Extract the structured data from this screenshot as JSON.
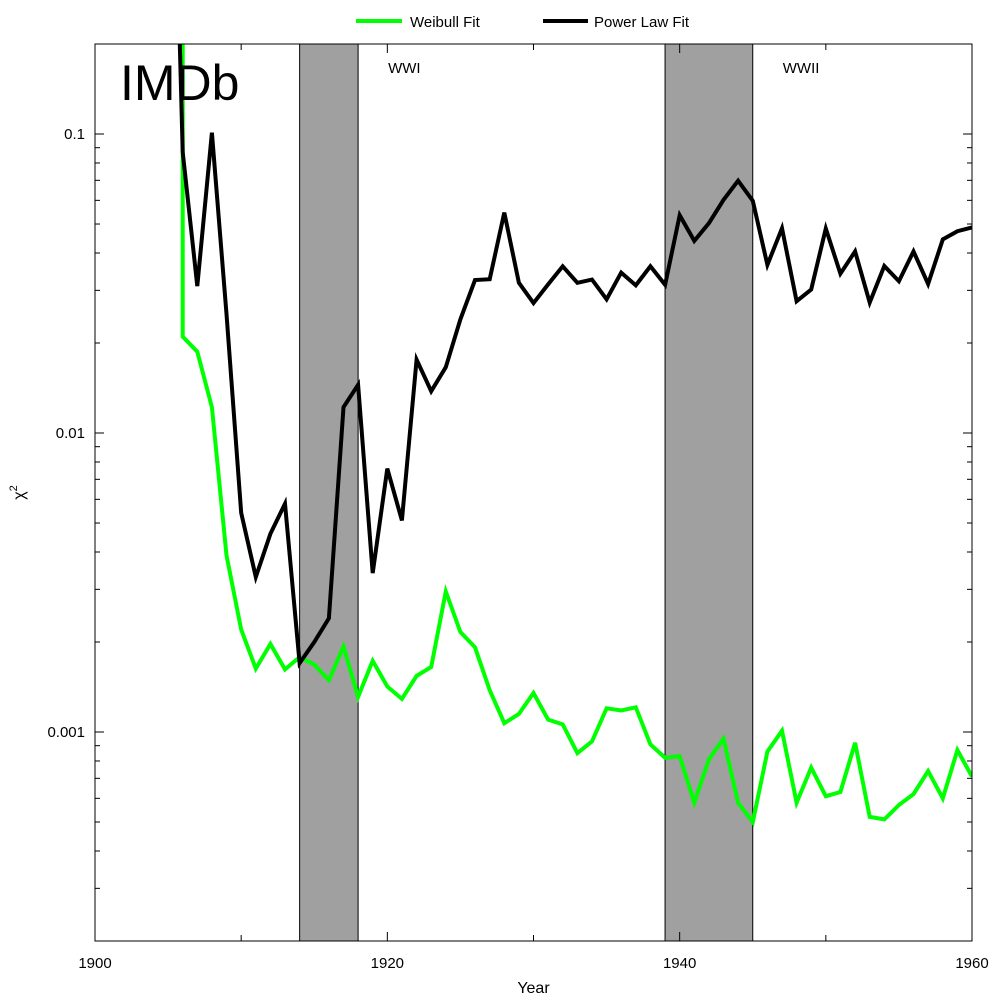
{
  "chart_data": {
    "type": "line",
    "panel_label": "IMDb",
    "xlabel": "Year",
    "ylabel": "χ",
    "ylabel_sup": "2",
    "xlim": [
      1900,
      1960
    ],
    "ylim": [
      0.0002,
      0.2
    ],
    "yscale": "log",
    "x_ticks": [
      1900,
      1920,
      1940,
      1960
    ],
    "y_ticks": [
      0.001,
      0.01,
      0.1
    ],
    "y_tick_labels": [
      "0.001",
      "0.01",
      "0.1"
    ],
    "x_tick_labels": [
      "1900",
      "1920",
      "1940",
      "1960"
    ],
    "grid": false,
    "legend_position": "top-center-outside",
    "shaded_regions": [
      {
        "label": "WWI",
        "start": 1914,
        "end": 1918,
        "color": "#a0a0a0"
      },
      {
        "label": "WWII",
        "start": 1939,
        "end": 1945,
        "color": "#a0a0a0"
      }
    ],
    "series": [
      {
        "name": "Weibull Fit",
        "color": "#00ff00",
        "x": [
          1906,
          1906,
          1907,
          1908,
          1909,
          1910,
          1911,
          1912,
          1913,
          1914,
          1915,
          1916,
          1917,
          1918,
          1919,
          1920,
          1921,
          1922,
          1923,
          1924,
          1925,
          1926,
          1927,
          1928,
          1929,
          1930,
          1931,
          1932,
          1933,
          1934,
          1935,
          1936,
          1937,
          1938,
          1939,
          1940,
          1941,
          1942,
          1943,
          1944,
          1945,
          1946,
          1947,
          1948,
          1949,
          1950,
          1951,
          1952,
          1953,
          1954,
          1955,
          1956,
          1957,
          1958,
          1959,
          1960
        ],
        "y": [
          0.2,
          0.021,
          0.0187,
          0.0122,
          0.0039,
          0.0022,
          0.00163,
          0.00197,
          0.00162,
          0.00178,
          0.00168,
          0.00149,
          0.00193,
          0.00131,
          0.00173,
          0.00142,
          0.00129,
          0.00154,
          0.00165,
          0.00295,
          0.00216,
          0.00192,
          0.00138,
          0.00107,
          0.00115,
          0.00135,
          0.0011,
          0.00106,
          0.00085,
          0.00093,
          0.0012,
          0.00118,
          0.00121,
          0.00091,
          0.00082,
          0.00083,
          0.00058,
          0.00081,
          0.00095,
          0.00058,
          0.0005,
          0.00086,
          0.00101,
          0.00058,
          0.00076,
          0.00061,
          0.00063,
          0.00092,
          0.00052,
          0.00051,
          0.00057,
          0.00062,
          0.00074,
          0.0006,
          0.00087,
          0.00071
        ]
      },
      {
        "name": "Power Law Fit",
        "color": "#000000",
        "x": [
          1905.8,
          1906,
          1907,
          1908,
          1909,
          1910,
          1911,
          1912,
          1913,
          1914,
          1915,
          1916,
          1917,
          1918,
          1919,
          1920,
          1921,
          1922,
          1923,
          1924,
          1925,
          1926,
          1927,
          1928,
          1929,
          1930,
          1931,
          1932,
          1933,
          1934,
          1935,
          1936,
          1937,
          1938,
          1939,
          1940,
          1941,
          1942,
          1943,
          1944,
          1945,
          1946,
          1947,
          1948,
          1949,
          1950,
          1951,
          1952,
          1953,
          1954,
          1955,
          1956,
          1957,
          1958,
          1959,
          1960
        ],
        "y": [
          0.2,
          0.087,
          0.031,
          0.101,
          0.025,
          0.0054,
          0.0033,
          0.0046,
          0.0058,
          0.0017,
          0.002,
          0.0024,
          0.0122,
          0.0145,
          0.0034,
          0.0076,
          0.0051,
          0.0176,
          0.0138,
          0.0166,
          0.024,
          0.0325,
          0.0327,
          0.0546,
          0.0318,
          0.0272,
          0.0314,
          0.0361,
          0.0318,
          0.0326,
          0.028,
          0.0344,
          0.0312,
          0.0361,
          0.0313,
          0.0535,
          0.0439,
          0.0503,
          0.0602,
          0.0698,
          0.0598,
          0.0365,
          0.0484,
          0.0276,
          0.0302,
          0.0483,
          0.0341,
          0.0405,
          0.0273,
          0.0362,
          0.0322,
          0.0405,
          0.0315,
          0.0444,
          0.0473,
          0.0487
        ]
      }
    ]
  }
}
